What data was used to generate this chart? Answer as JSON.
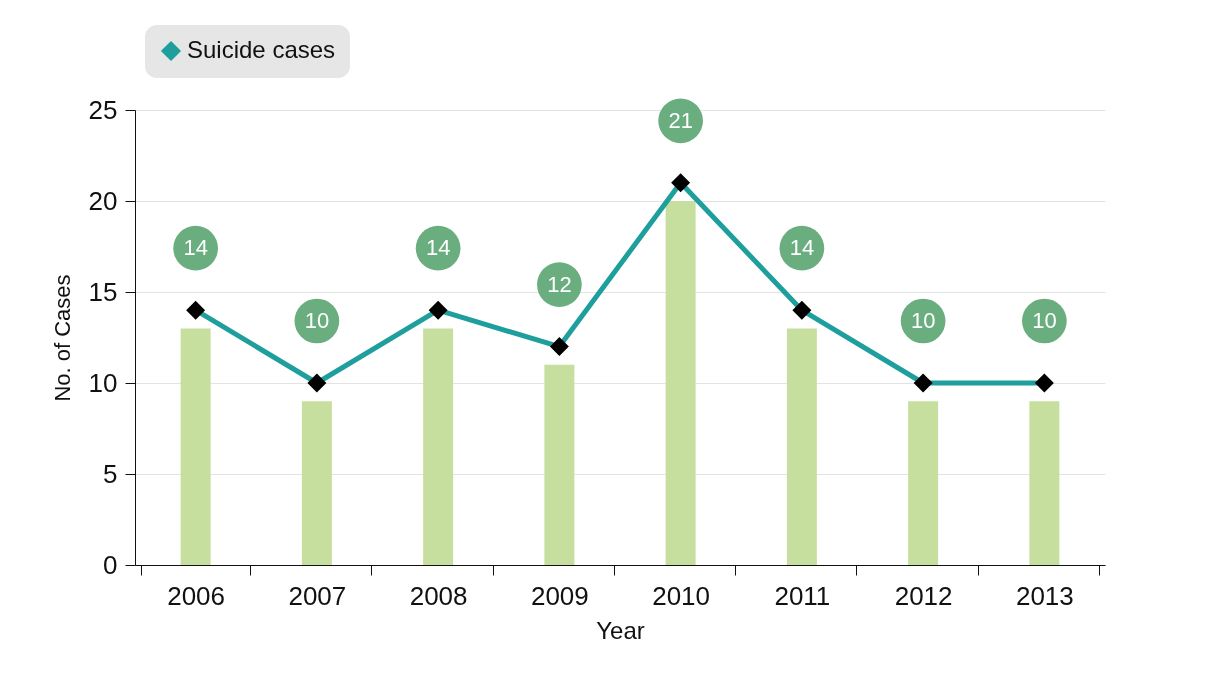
{
  "chart_data": {
    "type": "line",
    "xlabel": "Year",
    "ylabel": "No. of Cases",
    "categories": [
      "2006",
      "2007",
      "2008",
      "2009",
      "2010",
      "2011",
      "2012",
      "2013"
    ],
    "series": [
      {
        "type": "bar",
        "color": "#c6df9f",
        "values": [
          13,
          9,
          13,
          11,
          20,
          13,
          9,
          9
        ]
      },
      {
        "name": "Suicide cases",
        "color": "#1e9e9c",
        "marker": "diamond",
        "data_labels": true,
        "values": [
          14,
          10,
          14,
          12,
          21,
          14,
          10,
          10
        ]
      }
    ],
    "ylim": [
      0,
      25
    ],
    "yticks": [
      0,
      5,
      10,
      15,
      20,
      25
    ],
    "grid": "y",
    "legend": "top left"
  }
}
